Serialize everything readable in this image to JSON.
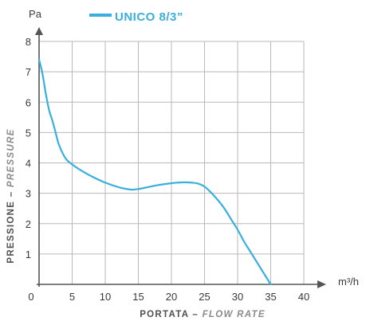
{
  "chart_data": {
    "type": "line",
    "title": "",
    "xlabel": "PORTATA – FLOW RATE",
    "xlabel_main": "PORTATA",
    "xlabel_secondary": "FLOW RATE",
    "ylabel": "PRESSIONE – PRESSURE",
    "ylabel_main": "PRESSIONE",
    "ylabel_secondary": "PRESSURE",
    "x_unit": "m³/h",
    "y_unit": "Pa",
    "xlim": [
      0,
      40
    ],
    "ylim": [
      0,
      8
    ],
    "x_ticks": [
      0,
      5,
      10,
      15,
      20,
      25,
      30,
      35,
      40
    ],
    "y_ticks": [
      0,
      1,
      2,
      3,
      4,
      5,
      6,
      7,
      8
    ],
    "grid": true,
    "legend_position": "top",
    "series": [
      {
        "name": "UNICO 8/3”",
        "color": "#3aaedc",
        "x": [
          0,
          0.5,
          1,
          1.5,
          2,
          2.5,
          3,
          4,
          5,
          6,
          8,
          10,
          12,
          13,
          14,
          15,
          16,
          18,
          20,
          21,
          22,
          23,
          24,
          25,
          26,
          27,
          28,
          29,
          30,
          31,
          32,
          33,
          34,
          35
        ],
        "y": [
          7.4,
          6.95,
          6.3,
          5.75,
          5.4,
          5.0,
          4.6,
          4.15,
          3.95,
          3.8,
          3.55,
          3.35,
          3.2,
          3.15,
          3.12,
          3.14,
          3.18,
          3.27,
          3.33,
          3.35,
          3.36,
          3.35,
          3.32,
          3.22,
          3.02,
          2.78,
          2.5,
          2.15,
          1.8,
          1.4,
          1.05,
          0.7,
          0.35,
          0.0
        ]
      }
    ]
  }
}
